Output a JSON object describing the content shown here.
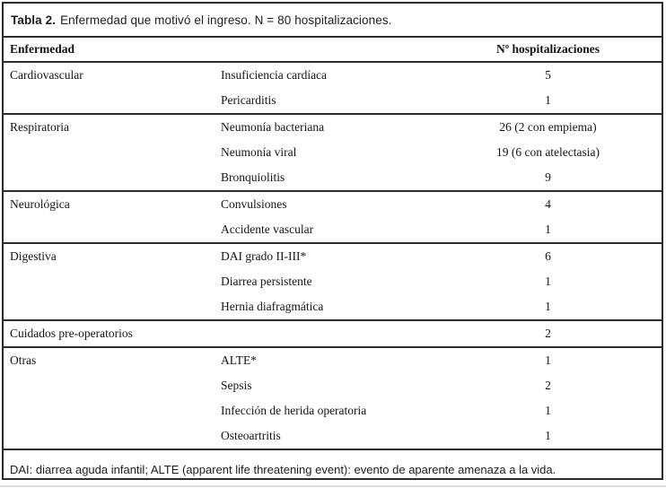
{
  "title": {
    "label": "Tabla 2.",
    "text": "Enfermedad que motivó el ingreso. N = 80 hospitalizaciones."
  },
  "table": {
    "headers": {
      "disease": "Enfermedad",
      "count": "Nº hospitalizaciones"
    },
    "groups": [
      {
        "category": "Cardiovascular",
        "rows": [
          {
            "sub": "Insuficiencia cardíaca",
            "value": "5"
          },
          {
            "sub": "Pericarditis",
            "value": "1"
          }
        ]
      },
      {
        "category": "Respiratoria",
        "rows": [
          {
            "sub": "Neumonía bacteriana",
            "value": "26 (2 con empiema)"
          },
          {
            "sub": "Neumonía viral",
            "value": "19 (6 con atelectasia)"
          },
          {
            "sub": "Bronquiolitis",
            "value": "9"
          }
        ]
      },
      {
        "category": "Neurológica",
        "rows": [
          {
            "sub": "Convulsiones",
            "value": "4"
          },
          {
            "sub": "Accidente vascular",
            "value": "1"
          }
        ]
      },
      {
        "category": "Digestiva",
        "rows": [
          {
            "sub": "DAI grado II-III*",
            "value": "6"
          },
          {
            "sub": "Diarrea persistente",
            "value": "1"
          },
          {
            "sub": "Hernia diafragmática",
            "value": "1"
          }
        ]
      },
      {
        "category": "Cuidados pre-operatorios",
        "rows": [
          {
            "sub": "",
            "value": "2"
          }
        ]
      },
      {
        "category": "Otras",
        "rows": [
          {
            "sub": "ALTE*",
            "value": "1"
          },
          {
            "sub": "Sepsis",
            "value": "2"
          },
          {
            "sub": "Infección de herida operatoria",
            "value": "1"
          },
          {
            "sub": "Osteoartritis",
            "value": "1"
          }
        ]
      }
    ],
    "footnote": "DAI: diarrea aguda infantil; ALTE (apparent life threatening event): evento de aparente amenaza a la vida."
  }
}
